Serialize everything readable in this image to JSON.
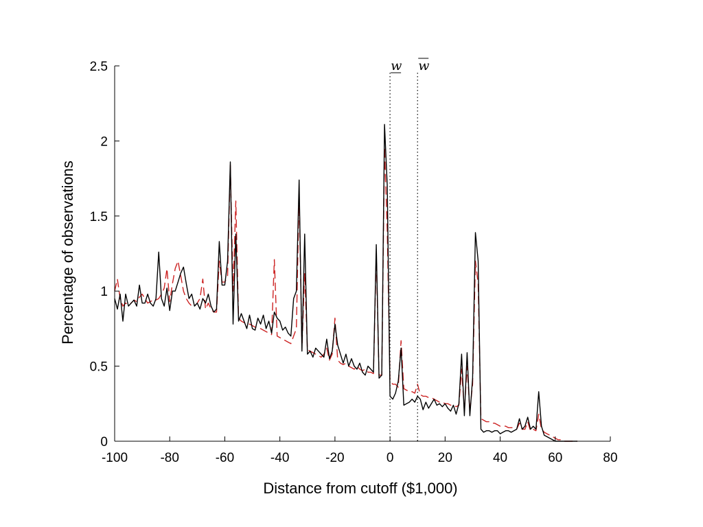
{
  "chart_data": {
    "type": "line",
    "title": "",
    "xlabel": "Distance from cutoff ($1,000)",
    "ylabel": "Percentage of observations",
    "xlim": [
      -100,
      80
    ],
    "ylim": [
      0,
      2.5
    ],
    "xticks": [
      -100,
      -80,
      -60,
      -40,
      -20,
      0,
      20,
      40,
      60,
      80
    ],
    "yticks": [
      0,
      0.5,
      1,
      1.5,
      2,
      2.5
    ],
    "grid": false,
    "legend": "none",
    "vertical_markers": [
      {
        "label": "w",
        "bar": "under",
        "x": 0
      },
      {
        "label": "w",
        "bar": "over",
        "x": 10
      }
    ],
    "series": [
      {
        "color": "#000000",
        "style": "solid",
        "x": [
          -100,
          -99,
          -98,
          -97,
          -96,
          -95,
          -94,
          -93,
          -92,
          -91,
          -90,
          -89,
          -88,
          -87,
          -86,
          -85,
          -84,
          -83,
          -82,
          -81,
          -80,
          -79,
          -78,
          -77,
          -76,
          -75,
          -74,
          -73,
          -72,
          -71,
          -70,
          -69,
          -68,
          -67,
          -66,
          -65,
          -64,
          -63,
          -62,
          -61,
          -60,
          -59,
          -58,
          -57,
          -56,
          -55,
          -54,
          -53,
          -52,
          -51,
          -50,
          -49,
          -48,
          -47,
          -46,
          -45,
          -44,
          -43,
          -42,
          -41,
          -40,
          -39,
          -38,
          -37,
          -36,
          -35,
          -34,
          -33,
          -32,
          -31,
          -30,
          -29,
          -28,
          -27,
          -26,
          -25,
          -24,
          -23,
          -22,
          -21,
          -20,
          -19,
          -18,
          -17,
          -16,
          -15,
          -14,
          -13,
          -12,
          -11,
          -10,
          -9,
          -8,
          -7,
          -6,
          -5,
          -4,
          -3,
          -2,
          -1,
          0,
          1,
          2,
          3,
          4,
          5,
          6,
          7,
          8,
          9,
          10,
          11,
          12,
          13,
          14,
          15,
          16,
          17,
          18,
          19,
          20,
          21,
          22,
          23,
          24,
          25,
          26,
          27,
          28,
          29,
          30,
          31,
          32,
          33,
          34,
          35,
          36,
          37,
          38,
          39,
          40,
          41,
          42,
          43,
          44,
          45,
          46,
          47,
          48,
          49,
          50,
          51,
          52,
          53,
          54,
          55,
          56,
          57,
          58,
          59,
          60,
          61,
          62,
          63,
          64,
          65,
          66,
          67,
          68
        ],
        "y": [
          0.95,
          0.88,
          0.98,
          0.8,
          0.98,
          0.9,
          0.92,
          0.94,
          0.9,
          1.04,
          0.92,
          0.92,
          0.98,
          0.92,
          0.9,
          0.95,
          1.26,
          0.95,
          0.9,
          1.02,
          0.87,
          1.0,
          1.0,
          1.06,
          1.12,
          1.16,
          1.05,
          0.95,
          0.98,
          0.9,
          0.92,
          0.88,
          0.95,
          0.92,
          0.98,
          0.9,
          0.86,
          0.88,
          1.33,
          1.04,
          1.04,
          1.2,
          1.86,
          0.78,
          1.38,
          0.8,
          0.85,
          0.8,
          0.75,
          0.84,
          0.75,
          0.74,
          0.82,
          0.78,
          0.84,
          0.75,
          0.8,
          0.72,
          0.86,
          0.82,
          0.8,
          0.74,
          0.76,
          0.72,
          0.7,
          0.95,
          1.0,
          1.74,
          0.6,
          1.38,
          0.58,
          0.6,
          0.56,
          0.62,
          0.6,
          0.58,
          0.56,
          0.68,
          0.55,
          0.6,
          0.78,
          0.64,
          0.58,
          0.52,
          0.58,
          0.5,
          0.55,
          0.5,
          0.48,
          0.52,
          0.46,
          0.44,
          0.5,
          0.48,
          0.46,
          1.31,
          0.42,
          0.44,
          2.11,
          1.7,
          0.3,
          0.28,
          0.32,
          0.4,
          0.62,
          0.24,
          0.25,
          0.26,
          0.28,
          0.26,
          0.3,
          0.28,
          0.21,
          0.26,
          0.22,
          0.25,
          0.28,
          0.24,
          0.25,
          0.23,
          0.25,
          0.22,
          0.2,
          0.24,
          0.18,
          0.25,
          0.58,
          0.17,
          0.59,
          0.17,
          0.42,
          1.39,
          1.2,
          0.08,
          0.06,
          0.07,
          0.07,
          0.06,
          0.07,
          0.07,
          0.05,
          0.06,
          0.07,
          0.07,
          0.06,
          0.07,
          0.08,
          0.15,
          0.08,
          0.1,
          0.16,
          0.08,
          0.1,
          0.08,
          0.33,
          0.1,
          0.04,
          0.03,
          0.02,
          0.01,
          0.0,
          0.0,
          0.0,
          0.0,
          0.0,
          0.0,
          0.0,
          0.0,
          0.0
        ]
      },
      {
        "color": "#cc2222",
        "style": "dashed",
        "x": [
          -100,
          -99,
          -98,
          -97,
          -96,
          -95,
          -94,
          -93,
          -92,
          -91,
          -90,
          -89,
          -88,
          -87,
          -86,
          -85,
          -84,
          -83,
          -82,
          -81,
          -80,
          -79,
          -78,
          -77,
          -76,
          -75,
          -74,
          -73,
          -72,
          -71,
          -70,
          -69,
          -68,
          -67,
          -66,
          -65,
          -64,
          -63,
          -62,
          -61,
          -60,
          -59,
          -58,
          -57,
          -56,
          -55,
          -54,
          -53,
          -52,
          -51,
          -50,
          -49,
          -48,
          -47,
          -46,
          -45,
          -44,
          -43,
          -42,
          -41,
          -40,
          -39,
          -38,
          -37,
          -36,
          -35,
          -34,
          -33,
          -32,
          -31,
          -30,
          -29,
          -28,
          -27,
          -26,
          -25,
          -24,
          -23,
          -22,
          -21,
          -20,
          -19,
          -18,
          -17,
          -16,
          -15,
          -14,
          -13,
          -12,
          -11,
          -10,
          -9,
          -8,
          -7,
          -6,
          -5,
          -4,
          -3,
          -2,
          -1,
          0,
          1,
          2,
          3,
          4,
          5,
          6,
          7,
          8,
          9,
          10,
          11,
          12,
          13,
          14,
          15,
          16,
          17,
          18,
          19,
          20,
          21,
          22,
          23,
          24,
          25,
          26,
          27,
          28,
          29,
          30,
          31,
          32,
          33,
          34,
          35,
          36,
          37,
          38,
          39,
          40,
          41,
          42,
          43,
          44,
          45,
          46,
          47,
          48,
          49,
          50,
          51,
          52,
          53,
          54,
          55,
          56,
          57,
          58,
          59,
          60,
          61,
          62,
          63,
          64,
          65,
          66,
          67,
          68
        ],
        "y": [
          1.0,
          1.08,
          0.95,
          0.9,
          0.92,
          0.91,
          0.92,
          0.94,
          0.93,
          0.96,
          0.98,
          0.95,
          0.92,
          0.93,
          0.94,
          0.94,
          0.95,
          0.98,
          1.02,
          1.15,
          0.93,
          1.05,
          1.15,
          1.2,
          1.1,
          1.0,
          0.95,
          0.92,
          0.9,
          0.9,
          0.92,
          0.95,
          1.08,
          0.88,
          0.92,
          0.88,
          0.86,
          0.86,
          1.2,
          1.06,
          1.06,
          1.1,
          1.84,
          1.0,
          1.6,
          0.82,
          0.8,
          0.79,
          0.78,
          0.78,
          0.77,
          0.76,
          0.76,
          0.75,
          0.74,
          0.73,
          0.72,
          0.71,
          1.21,
          0.7,
          0.69,
          0.68,
          0.67,
          0.66,
          0.65,
          0.7,
          0.75,
          1.66,
          0.62,
          1.12,
          0.61,
          0.6,
          0.59,
          0.58,
          0.57,
          0.56,
          0.58,
          0.62,
          0.54,
          0.58,
          0.82,
          0.54,
          0.52,
          0.51,
          0.52,
          0.5,
          0.49,
          0.48,
          0.5,
          0.48,
          0.47,
          0.48,
          0.46,
          0.46,
          0.45,
          1.25,
          0.44,
          0.44,
          1.96,
          1.4,
          0.4,
          0.38,
          0.38,
          0.36,
          0.67,
          0.35,
          0.34,
          0.33,
          0.33,
          0.32,
          0.38,
          0.31,
          0.3,
          0.3,
          0.29,
          0.29,
          0.28,
          0.27,
          0.26,
          0.26,
          0.25,
          0.25,
          0.24,
          0.24,
          0.23,
          0.24,
          0.48,
          0.2,
          0.5,
          0.2,
          0.38,
          1.2,
          1.05,
          0.15,
          0.14,
          0.13,
          0.13,
          0.12,
          0.12,
          0.11,
          0.1,
          0.1,
          0.1,
          0.09,
          0.09,
          0.09,
          0.08,
          0.12,
          0.08,
          0.08,
          0.13,
          0.07,
          0.08,
          0.07,
          0.18,
          0.08,
          0.06,
          0.05,
          0.04,
          0.03,
          0.02,
          0.01,
          0.01,
          0.0,
          0.0,
          0.0,
          0.0,
          0.0,
          0.0
        ]
      }
    ]
  }
}
